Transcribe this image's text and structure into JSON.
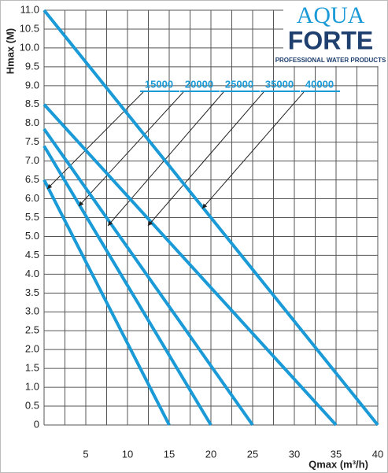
{
  "logo": {
    "brand_top": "AQUA",
    "brand_bottom": "FORTE",
    "tagline": "PROFESSIONAL WATER PRODUCTS"
  },
  "chart_data": {
    "type": "line",
    "xlabel": "Qmax (m³/h)",
    "ylabel": "Hmax (M)",
    "xlim": [
      0,
      40
    ],
    "ylim": [
      0,
      11
    ],
    "xticks": [
      5,
      10,
      15,
      20,
      25,
      30,
      35,
      40
    ],
    "yticks": [
      0,
      0.5,
      {
        "value": 1,
        "label": "1.0"
      },
      1.5,
      {
        "value": 2,
        "label": "2.0"
      },
      2.5,
      {
        "value": 3,
        "label": "3.0"
      },
      3.5,
      {
        "value": 4,
        "label": "4.0"
      },
      4.5,
      {
        "value": 5,
        "label": "5.0"
      },
      5.5,
      {
        "value": 6,
        "label": "6.0"
      },
      6.5,
      {
        "value": 7,
        "label": "7.0"
      },
      7.5,
      {
        "value": 8,
        "label": "8.0"
      },
      8.5,
      {
        "value": 9,
        "label": "9.0"
      },
      9.5,
      {
        "value": 10,
        "label": "10.0"
      },
      10.5,
      {
        "value": 11,
        "label": "11.0"
      }
    ],
    "grid": true,
    "series": [
      {
        "name": "15000",
        "color": "#1a9ad6",
        "x": [
          0,
          15
        ],
        "values": [
          6.5,
          0
        ]
      },
      {
        "name": "20000",
        "color": "#1a9ad6",
        "x": [
          0,
          20
        ],
        "values": [
          7.4,
          0
        ]
      },
      {
        "name": "25000",
        "color": "#1a9ad6",
        "x": [
          0,
          25
        ],
        "values": [
          7.85,
          0
        ]
      },
      {
        "name": "35000",
        "color": "#1a9ad6",
        "x": [
          0,
          35
        ],
        "values": [
          8.5,
          0
        ]
      },
      {
        "name": "40000",
        "color": "#1a9ad6",
        "x": [
          0,
          40
        ],
        "values": [
          11,
          0
        ]
      }
    ]
  }
}
